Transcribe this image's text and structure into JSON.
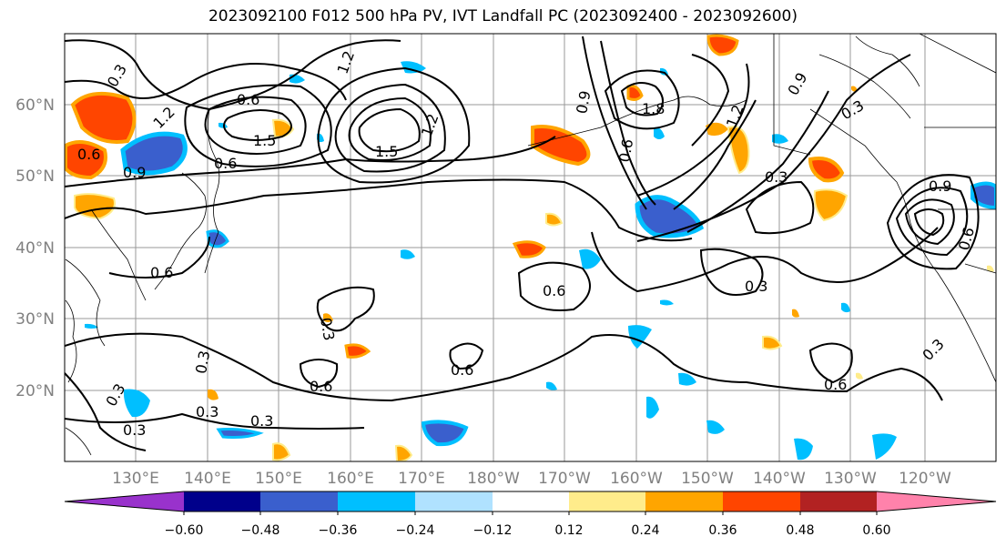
{
  "title": "2023092100 F012 500 hPa PV, IVT Landfall PC (2023092400 - 2023092600)",
  "lat_labels": [
    "60°N",
    "50°N",
    "40°N",
    "30°N",
    "20°N"
  ],
  "lon_labels": [
    "130°E",
    "140°E",
    "150°E",
    "160°E",
    "170°E",
    "180°W",
    "170°W",
    "160°W",
    "150°W",
    "140°W",
    "130°W",
    "120°W"
  ],
  "colorbar": {
    "colors": [
      "#9932cc",
      "#00008b",
      "#3a5fcd",
      "#00bfff",
      "#b0e2ff",
      "#ffffff",
      "#ffec8b",
      "#ffa500",
      "#ff4500",
      "#b22222",
      "#ff82ab"
    ],
    "ticks": [
      "−0.60",
      "−0.48",
      "−0.36",
      "−0.24",
      "−0.12",
      "0.12",
      "0.24",
      "0.36",
      "0.48",
      "0.60"
    ]
  },
  "contour_labels": [
    "0.3",
    "0.6",
    "0.9",
    "1.2",
    "1.5",
    "1.8"
  ]
}
